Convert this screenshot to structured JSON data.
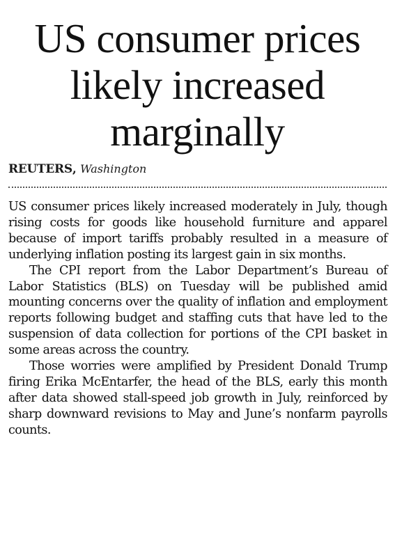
{
  "article": {
    "headline_lines": [
      "US consumer prices",
      "likely increased",
      "marginally"
    ],
    "byline": {
      "agency": "REUTERS",
      "separator": ",",
      "location": "Washington"
    },
    "paragraphs": [
      "US consumer prices likely increased moderately in July, though rising costs for goods like household furniture and apparel because of import tariffs probably resulted in a measure of underlying inflation posting its largest gain in six months.",
      "The CPI report from the Labor Department’s Bureau of Labor Statistics (BLS) on Tuesday will be published amid mounting concerns over the quality of inflation and employment reports following budget and staffing cuts that have led to the suspension of data collection for portions of the CPI basket in some areas across the country.",
      "Those worries were amplified by President Donald Trump firing Erika McEntarfer, the head of the BLS, early this month after data showed stall-speed job growth in July, reinforced by sharp downward revisions to May and June’s nonfarm payrolls counts."
    ]
  }
}
